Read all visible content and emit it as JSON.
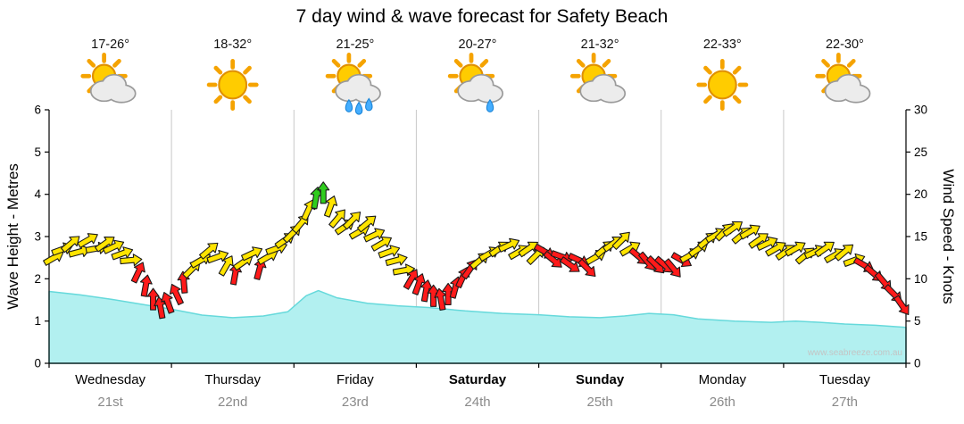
{
  "title": "7 day wind & wave forecast for Safety Beach",
  "watermark": "www.seabreeze.com.au",
  "days": [
    {
      "name": "Wednesday",
      "date": "21st",
      "temp": "17-26°",
      "icon": "sun-cloud",
      "bold": false
    },
    {
      "name": "Thursday",
      "date": "22nd",
      "temp": "18-32°",
      "icon": "sun",
      "bold": false
    },
    {
      "name": "Friday",
      "date": "23rd",
      "temp": "21-25°",
      "icon": "sun-cloud-rain",
      "bold": false
    },
    {
      "name": "Saturday",
      "date": "24th",
      "temp": "20-27°",
      "icon": "sun-cloud-drizzle",
      "bold": true
    },
    {
      "name": "Sunday",
      "date": "25th",
      "temp": "21-32°",
      "icon": "sun-cloud",
      "bold": true
    },
    {
      "name": "Monday",
      "date": "26th",
      "temp": "22-33°",
      "icon": "sun",
      "bold": false
    },
    {
      "name": "Tuesday",
      "date": "27th",
      "temp": "22-30°",
      "icon": "sun-cloud",
      "bold": false
    }
  ],
  "axes": {
    "left_label": "Wave Height - Metres",
    "right_label": "Wind Speed - Knots",
    "left_ticks": [
      0,
      1,
      2,
      3,
      4,
      5,
      6
    ],
    "right_ticks": [
      0,
      5,
      10,
      15,
      20,
      25,
      30
    ]
  },
  "colors": {
    "yellow": "#FFE400",
    "red": "#FF1A1A",
    "green": "#2FCC1E",
    "wave_fill": "#B2F0F0",
    "wave_line": "#66D9DB",
    "gridline": "#C8C8C8",
    "axis": "#000000"
  },
  "chart_data": {
    "type": "area",
    "title": "7 day wind & wave forecast for Safety Beach",
    "x_axis": {
      "unit": "days",
      "categories": [
        "Wednesday 21st",
        "Thursday 22nd",
        "Friday 23rd",
        "Saturday 24th",
        "Sunday 25th",
        "Monday 26th",
        "Tuesday 27th"
      ]
    },
    "y_left": {
      "label": "Wave Height - Metres",
      "range": [
        0,
        6
      ]
    },
    "y_right": {
      "label": "Wind Speed - Knots",
      "range": [
        0,
        30
      ]
    },
    "grid": "vertical-day-boundaries",
    "wave": {
      "name": "Wave Height (m)",
      "t_days": [
        0,
        0.25,
        0.5,
        0.75,
        1.0,
        1.25,
        1.5,
        1.75,
        1.95,
        2.1,
        2.2,
        2.35,
        2.6,
        2.85,
        3.1,
        3.4,
        3.7,
        4.0,
        4.25,
        4.5,
        4.7,
        4.9,
        5.1,
        5.3,
        5.6,
        5.9,
        6.1,
        6.3,
        6.5,
        6.75,
        7.0
      ],
      "values_m": [
        1.7,
        1.62,
        1.52,
        1.4,
        1.28,
        1.14,
        1.08,
        1.12,
        1.22,
        1.6,
        1.72,
        1.55,
        1.42,
        1.36,
        1.32,
        1.24,
        1.18,
        1.15,
        1.1,
        1.08,
        1.12,
        1.18,
        1.15,
        1.05,
        1.0,
        0.97,
        1.0,
        0.97,
        0.93,
        0.9,
        0.85
      ]
    },
    "wind": {
      "name": "Wind Speed (knots)",
      "point_format": "t_days, knots, direction_deg, color(y=yellow,r=red,g=green)",
      "points": [
        [
          0.04,
          12.5,
          60,
          "y"
        ],
        [
          0.11,
          13.5,
          70,
          "y"
        ],
        [
          0.18,
          14.2,
          50,
          "y"
        ],
        [
          0.25,
          13.2,
          75,
          "y"
        ],
        [
          0.32,
          14.6,
          60,
          "y"
        ],
        [
          0.39,
          13.6,
          80,
          "y"
        ],
        [
          0.46,
          14.2,
          55,
          "y"
        ],
        [
          0.53,
          13.8,
          65,
          "y"
        ],
        [
          0.6,
          13.0,
          70,
          "y"
        ],
        [
          0.67,
          12.2,
          85,
          "y"
        ],
        [
          0.73,
          10.8,
          25,
          "r"
        ],
        [
          0.79,
          9.2,
          10,
          "r"
        ],
        [
          0.85,
          7.6,
          0,
          "r"
        ],
        [
          0.91,
          6.6,
          350,
          "r"
        ],
        [
          0.97,
          7.2,
          340,
          "r"
        ],
        [
          1.04,
          8.2,
          335,
          "r"
        ],
        [
          1.1,
          9.6,
          355,
          "r"
        ],
        [
          1.17,
          11.2,
          45,
          "y"
        ],
        [
          1.24,
          12.2,
          60,
          "y"
        ],
        [
          1.31,
          13.4,
          50,
          "y"
        ],
        [
          1.38,
          12.6,
          70,
          "y"
        ],
        [
          1.45,
          11.6,
          30,
          "y"
        ],
        [
          1.52,
          10.6,
          10,
          "r"
        ],
        [
          1.59,
          12.0,
          55,
          "y"
        ],
        [
          1.66,
          13.0,
          65,
          "y"
        ],
        [
          1.72,
          11.2,
          15,
          "r"
        ],
        [
          1.79,
          12.6,
          60,
          "y"
        ],
        [
          1.86,
          13.6,
          70,
          "y"
        ],
        [
          1.93,
          14.6,
          55,
          "y"
        ],
        [
          1.99,
          15.4,
          45,
          "y"
        ],
        [
          2.06,
          16.6,
          40,
          "y"
        ],
        [
          2.12,
          18.2,
          25,
          "y"
        ],
        [
          2.18,
          19.6,
          10,
          "g"
        ],
        [
          2.24,
          20.2,
          0,
          "g"
        ],
        [
          2.3,
          18.6,
          20,
          "y"
        ],
        [
          2.36,
          17.2,
          40,
          "y"
        ],
        [
          2.42,
          16.2,
          55,
          "y"
        ],
        [
          2.48,
          17.0,
          45,
          "y"
        ],
        [
          2.54,
          15.6,
          60,
          "y"
        ],
        [
          2.6,
          16.6,
          50,
          "y"
        ],
        [
          2.66,
          15.2,
          65,
          "y"
        ],
        [
          2.72,
          14.2,
          60,
          "y"
        ],
        [
          2.78,
          13.2,
          70,
          "y"
        ],
        [
          2.84,
          12.2,
          75,
          "y"
        ],
        [
          2.9,
          11.0,
          80,
          "y"
        ],
        [
          2.96,
          10.0,
          30,
          "r"
        ],
        [
          3.02,
          9.4,
          20,
          "r"
        ],
        [
          3.08,
          8.6,
          10,
          "r"
        ],
        [
          3.14,
          8.0,
          0,
          "r"
        ],
        [
          3.2,
          7.6,
          350,
          "r"
        ],
        [
          3.26,
          8.2,
          0,
          "r"
        ],
        [
          3.32,
          9.0,
          15,
          "r"
        ],
        [
          3.38,
          10.2,
          25,
          "r"
        ],
        [
          3.44,
          11.2,
          35,
          "r"
        ],
        [
          3.52,
          12.2,
          50,
          "y"
        ],
        [
          3.6,
          13.0,
          60,
          "y"
        ],
        [
          3.68,
          13.6,
          55,
          "y"
        ],
        [
          3.76,
          14.0,
          65,
          "y"
        ],
        [
          3.84,
          13.2,
          60,
          "y"
        ],
        [
          3.92,
          13.6,
          55,
          "y"
        ],
        [
          3.98,
          12.8,
          45,
          "y"
        ],
        [
          4.05,
          13.2,
          120,
          "r"
        ],
        [
          4.12,
          12.2,
          130,
          "r"
        ],
        [
          4.19,
          12.6,
          110,
          "r"
        ],
        [
          4.26,
          11.6,
          125,
          "r"
        ],
        [
          4.33,
          12.2,
          115,
          "r"
        ],
        [
          4.4,
          11.2,
          135,
          "r"
        ],
        [
          4.47,
          12.6,
          60,
          "y"
        ],
        [
          4.54,
          13.6,
          50,
          "y"
        ],
        [
          4.61,
          14.2,
          55,
          "y"
        ],
        [
          4.68,
          14.6,
          45,
          "y"
        ],
        [
          4.75,
          13.6,
          60,
          "y"
        ],
        [
          4.82,
          12.6,
          130,
          "r"
        ],
        [
          4.89,
          12.0,
          140,
          "r"
        ],
        [
          4.96,
          11.6,
          135,
          "r"
        ],
        [
          5.03,
          11.6,
          130,
          "r"
        ],
        [
          5.1,
          11.2,
          140,
          "r"
        ],
        [
          5.17,
          12.2,
          120,
          "r"
        ],
        [
          5.24,
          12.8,
          60,
          "y"
        ],
        [
          5.31,
          13.6,
          55,
          "y"
        ],
        [
          5.38,
          14.6,
          50,
          "y"
        ],
        [
          5.45,
          15.2,
          60,
          "y"
        ],
        [
          5.52,
          15.6,
          45,
          "y"
        ],
        [
          5.59,
          16.0,
          55,
          "y"
        ],
        [
          5.66,
          15.2,
          50,
          "y"
        ],
        [
          5.73,
          15.6,
          60,
          "y"
        ],
        [
          5.8,
          14.6,
          55,
          "y"
        ],
        [
          5.87,
          14.2,
          65,
          "y"
        ],
        [
          5.94,
          13.6,
          60,
          "y"
        ],
        [
          6.02,
          13.2,
          55,
          "y"
        ],
        [
          6.1,
          13.6,
          60,
          "y"
        ],
        [
          6.18,
          12.8,
          50,
          "y"
        ],
        [
          6.26,
          13.2,
          65,
          "y"
        ],
        [
          6.34,
          13.6,
          55,
          "y"
        ],
        [
          6.42,
          12.8,
          60,
          "y"
        ],
        [
          6.5,
          13.2,
          50,
          "y"
        ],
        [
          6.58,
          12.2,
          70,
          "y"
        ],
        [
          6.66,
          11.6,
          120,
          "r"
        ],
        [
          6.74,
          10.6,
          130,
          "r"
        ],
        [
          6.82,
          9.6,
          140,
          "r"
        ],
        [
          6.9,
          8.2,
          135,
          "r"
        ],
        [
          6.97,
          6.8,
          145,
          "r"
        ]
      ]
    }
  }
}
